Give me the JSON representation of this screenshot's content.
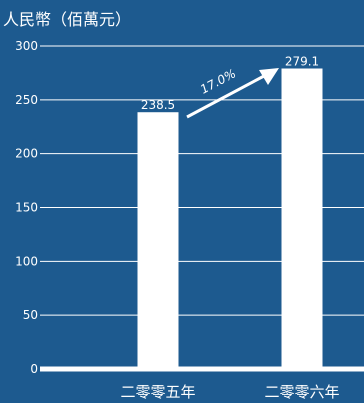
{
  "colors": {
    "background": "#1d5a8f",
    "bars": "#ffffff",
    "text": "#ffffff",
    "grid": "#ffffff"
  },
  "chart_data": {
    "type": "bar",
    "title": "",
    "xlabel": "",
    "ylabel": "人民幣（佰萬元）",
    "categories": [
      "二零零五年",
      "二零零六年"
    ],
    "values": [
      238.5,
      279.1
    ],
    "value_labels": [
      "238.5",
      "279.1"
    ],
    "ylim": [
      0,
      300
    ],
    "yticks": [
      0,
      50,
      100,
      150,
      200,
      250,
      300
    ],
    "grid": true,
    "legend": "none",
    "annotation": {
      "text": "17.0%",
      "type": "growth-arrow",
      "from_category": "二零零五年",
      "to_category": "二零零六年"
    }
  }
}
